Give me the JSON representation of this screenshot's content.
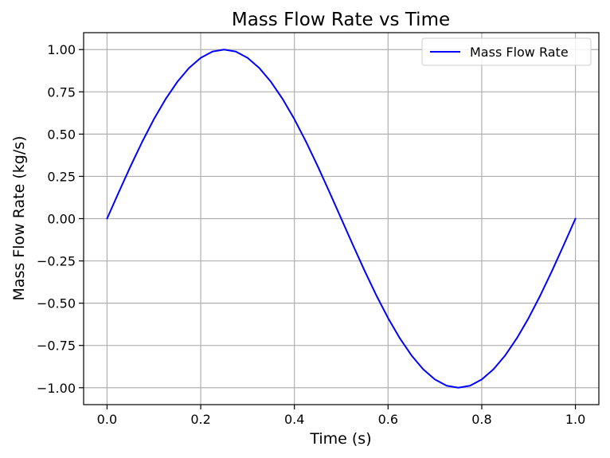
{
  "chart_data": {
    "type": "line",
    "title": "Mass Flow Rate vs Time",
    "xlabel": "Time (s)",
    "ylabel": "Mass Flow Rate (kg/s)",
    "xlim": [
      -0.05,
      1.05
    ],
    "ylim": [
      -1.1,
      1.1
    ],
    "xticks": [
      0.0,
      0.2,
      0.4,
      0.6,
      0.8,
      1.0
    ],
    "xtick_labels": [
      "0.0",
      "0.2",
      "0.4",
      "0.6",
      "0.8",
      "1.0"
    ],
    "yticks": [
      1.0,
      0.75,
      0.5,
      0.25,
      0.0,
      -0.25,
      -0.5,
      -0.75,
      -1.0
    ],
    "ytick_labels": [
      "1.00",
      "0.75",
      "0.50",
      "0.25",
      "0.00",
      "−0.25",
      "−0.50",
      "−0.75",
      "−1.00"
    ],
    "grid": true,
    "legend_position": "top-right",
    "series": [
      {
        "name": "Mass Flow Rate",
        "color": "#0000ff",
        "x": [
          0,
          0.025,
          0.05,
          0.075,
          0.1,
          0.125,
          0.15,
          0.175,
          0.2,
          0.225,
          0.25,
          0.275,
          0.3,
          0.325,
          0.35,
          0.375,
          0.4,
          0.425,
          0.45,
          0.475,
          0.5,
          0.525,
          0.55,
          0.575,
          0.6,
          0.625,
          0.65,
          0.675,
          0.7,
          0.725,
          0.75,
          0.775,
          0.8,
          0.825,
          0.85,
          0.875,
          0.9,
          0.925,
          0.95,
          0.975,
          1.0
        ],
        "y": [
          0,
          0.156,
          0.309,
          0.454,
          0.588,
          0.707,
          0.809,
          0.891,
          0.951,
          0.988,
          1.0,
          0.988,
          0.951,
          0.891,
          0.809,
          0.707,
          0.588,
          0.454,
          0.309,
          0.156,
          0,
          -0.156,
          -0.309,
          -0.454,
          -0.588,
          -0.707,
          -0.809,
          -0.891,
          -0.951,
          -0.988,
          -1.0,
          -0.988,
          -0.951,
          -0.891,
          -0.809,
          -0.707,
          -0.588,
          -0.454,
          -0.309,
          -0.156,
          0
        ]
      }
    ]
  }
}
